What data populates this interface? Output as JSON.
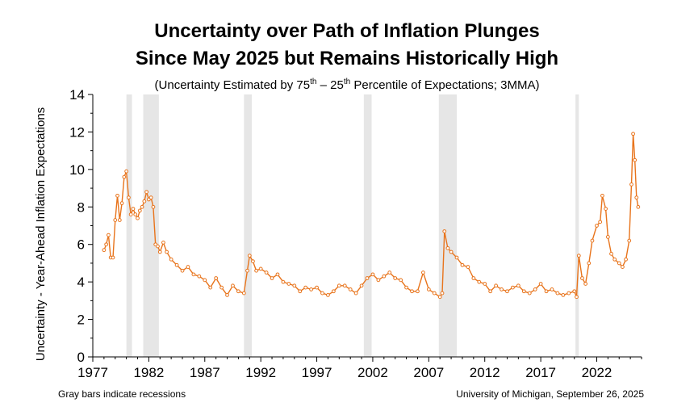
{
  "title_line1": "Uncertainty over Path of Inflation Plunges",
  "title_line2": "Since May 2025 but Remains Historically High",
  "subtitle_open": "(Uncertainty Estimated by 75",
  "subtitle_sup1": "th",
  "subtitle_mid": " – 25",
  "subtitle_sup2": "th",
  "subtitle_close": " Percentile of Expectations; 3MMA)",
  "footer_left": "Gray bars indicate recessions",
  "footer_right": "University of Michigan, September 26, 2025",
  "colors": {
    "series": "#e8741c",
    "recession": "#e6e6e6",
    "axis": "#000000"
  },
  "chart_data": {
    "type": "line",
    "ylabel": "Uncertainty - Year-Ahead Inflation Expectations",
    "xlabel": "",
    "ylim": [
      0,
      14
    ],
    "yticks": [
      0,
      2,
      4,
      6,
      8,
      10,
      12,
      14
    ],
    "xlim": [
      1977.0,
      2026.0
    ],
    "xticks": [
      1977,
      1982,
      1987,
      1992,
      1997,
      2002,
      2007,
      2012,
      2017,
      2022
    ],
    "grid": false,
    "recessions": [
      [
        1980.0,
        1980.5
      ],
      [
        1981.5,
        1982.9
      ],
      [
        1990.5,
        1991.2
      ],
      [
        2001.2,
        2001.9
      ],
      [
        2007.9,
        2009.5
      ],
      [
        2020.1,
        2020.4
      ]
    ],
    "series": [
      {
        "x": [
          1978.0,
          1978.2,
          1978.4,
          1978.6,
          1978.8,
          1979.0,
          1979.2,
          1979.4,
          1979.6,
          1979.8,
          1980.0,
          1980.2,
          1980.4,
          1980.6,
          1980.8,
          1981.0,
          1981.2,
          1981.4,
          1981.6,
          1981.8,
          1982.0,
          1982.2,
          1982.4,
          1982.6,
          1982.8,
          1983.0,
          1983.3,
          1983.6,
          1984.0,
          1984.5,
          1985.0,
          1985.5,
          1986.0,
          1986.5,
          1987.0,
          1987.5,
          1988.0,
          1988.5,
          1989.0,
          1989.5,
          1990.0,
          1990.5,
          1990.8,
          1991.0,
          1991.3,
          1991.6,
          1992.0,
          1992.5,
          1993.0,
          1993.5,
          1994.0,
          1994.5,
          1995.0,
          1995.5,
          1996.0,
          1996.5,
          1997.0,
          1997.5,
          1998.0,
          1998.5,
          1999.0,
          1999.5,
          2000.0,
          2000.5,
          2001.0,
          2001.5,
          2002.0,
          2002.5,
          2003.0,
          2003.5,
          2004.0,
          2004.5,
          2005.0,
          2005.5,
          2006.0,
          2006.5,
          2007.0,
          2007.5,
          2008.0,
          2008.2,
          2008.4,
          2008.7,
          2009.0,
          2009.5,
          2010.0,
          2010.5,
          2011.0,
          2011.5,
          2012.0,
          2012.5,
          2013.0,
          2013.5,
          2014.0,
          2014.5,
          2015.0,
          2015.5,
          2016.0,
          2016.5,
          2017.0,
          2017.5,
          2018.0,
          2018.5,
          2019.0,
          2019.5,
          2020.0,
          2020.2,
          2020.4,
          2020.7,
          2021.0,
          2021.3,
          2021.6,
          2022.0,
          2022.3,
          2022.5,
          2022.8,
          2023.0,
          2023.3,
          2023.6,
          2024.0,
          2024.3,
          2024.6,
          2024.9,
          2025.1,
          2025.25,
          2025.4,
          2025.55,
          2025.7
        ],
        "values": [
          5.7,
          6.0,
          6.5,
          5.3,
          5.3,
          7.3,
          8.6,
          7.3,
          8.2,
          9.6,
          9.9,
          8.5,
          7.6,
          7.9,
          7.6,
          7.4,
          7.8,
          8.0,
          8.3,
          8.8,
          8.4,
          8.5,
          8.0,
          6.0,
          5.9,
          5.6,
          6.1,
          5.6,
          5.2,
          4.9,
          4.6,
          4.8,
          4.4,
          4.3,
          4.1,
          3.7,
          4.2,
          3.7,
          3.3,
          3.8,
          3.5,
          3.4,
          4.6,
          5.4,
          5.1,
          4.6,
          4.7,
          4.5,
          4.2,
          4.4,
          4.0,
          3.9,
          3.8,
          3.5,
          3.7,
          3.6,
          3.7,
          3.4,
          3.3,
          3.5,
          3.8,
          3.8,
          3.6,
          3.4,
          3.8,
          4.2,
          4.4,
          4.1,
          4.3,
          4.5,
          4.2,
          4.1,
          3.7,
          3.5,
          3.5,
          4.5,
          3.6,
          3.4,
          3.2,
          3.4,
          6.7,
          5.8,
          5.6,
          5.3,
          4.9,
          4.8,
          4.2,
          4.0,
          3.9,
          3.5,
          3.8,
          3.6,
          3.5,
          3.7,
          3.8,
          3.5,
          3.4,
          3.6,
          3.9,
          3.5,
          3.6,
          3.4,
          3.3,
          3.4,
          3.5,
          3.2,
          5.4,
          4.2,
          3.9,
          5.0,
          6.2,
          7.0,
          7.2,
          8.6,
          7.9,
          6.4,
          5.5,
          5.2,
          5.0,
          4.8,
          5.2,
          6.2,
          9.2,
          11.9,
          10.5,
          8.5,
          8.0
        ]
      }
    ]
  }
}
